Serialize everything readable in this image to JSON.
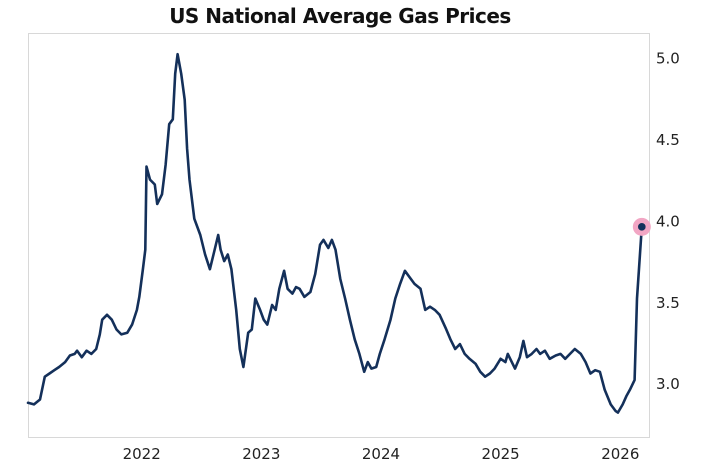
{
  "chart_data": {
    "type": "line",
    "title": "US National Average Gas Prices",
    "xlabel": "",
    "ylabel": "",
    "xlim": [
      2021.05,
      2026.24
    ],
    "ylim": [
      2.67,
      5.15
    ],
    "x_ticks": [
      2022,
      2023,
      2024,
      2025,
      2026
    ],
    "x_tick_labels": [
      "2022",
      "2023",
      "2024",
      "2025",
      "2026"
    ],
    "y_ticks": [
      3.0,
      3.5,
      4.0,
      4.5,
      5.0
    ],
    "y_tick_labels": [
      "3.0",
      "3.5",
      "4.0",
      "4.5",
      "5.0"
    ],
    "y_axis_side": "right",
    "grid": false,
    "line_color": "#14305a",
    "highlight_color": "#f2a6c4",
    "highlight": "last point",
    "series": [
      {
        "points": [
          [
            2021.05,
            2.88
          ],
          [
            2021.1,
            2.87
          ],
          [
            2021.15,
            2.9
          ],
          [
            2021.19,
            3.04
          ],
          [
            2021.23,
            3.06
          ],
          [
            2021.27,
            3.08
          ],
          [
            2021.31,
            3.1
          ],
          [
            2021.36,
            3.13
          ],
          [
            2021.4,
            3.17
          ],
          [
            2021.44,
            3.18
          ],
          [
            2021.46,
            3.2
          ],
          [
            2021.5,
            3.16
          ],
          [
            2021.54,
            3.2
          ],
          [
            2021.58,
            3.18
          ],
          [
            2021.62,
            3.21
          ],
          [
            2021.65,
            3.3
          ],
          [
            2021.67,
            3.39
          ],
          [
            2021.71,
            3.42
          ],
          [
            2021.75,
            3.39
          ],
          [
            2021.79,
            3.33
          ],
          [
            2021.83,
            3.3
          ],
          [
            2021.88,
            3.31
          ],
          [
            2021.92,
            3.36
          ],
          [
            2021.96,
            3.45
          ],
          [
            2021.98,
            3.53
          ],
          [
            2022.01,
            3.7
          ],
          [
            2022.03,
            3.82
          ],
          [
            2022.04,
            4.33
          ],
          [
            2022.07,
            4.25
          ],
          [
            2022.11,
            4.22
          ],
          [
            2022.13,
            4.1
          ],
          [
            2022.17,
            4.16
          ],
          [
            2022.2,
            4.34
          ],
          [
            2022.23,
            4.59
          ],
          [
            2022.26,
            4.62
          ],
          [
            2022.28,
            4.9
          ],
          [
            2022.3,
            5.02
          ],
          [
            2022.33,
            4.9
          ],
          [
            2022.36,
            4.74
          ],
          [
            2022.38,
            4.44
          ],
          [
            2022.4,
            4.25
          ],
          [
            2022.44,
            4.01
          ],
          [
            2022.49,
            3.91
          ],
          [
            2022.53,
            3.79
          ],
          [
            2022.57,
            3.7
          ],
          [
            2022.6,
            3.79
          ],
          [
            2022.64,
            3.91
          ],
          [
            2022.66,
            3.82
          ],
          [
            2022.69,
            3.75
          ],
          [
            2022.72,
            3.79
          ],
          [
            2022.75,
            3.7
          ],
          [
            2022.79,
            3.45
          ],
          [
            2022.82,
            3.21
          ],
          [
            2022.85,
            3.1
          ],
          [
            2022.89,
            3.31
          ],
          [
            2022.92,
            3.33
          ],
          [
            2022.95,
            3.52
          ],
          [
            2022.99,
            3.45
          ],
          [
            2023.02,
            3.39
          ],
          [
            2023.05,
            3.36
          ],
          [
            2023.09,
            3.48
          ],
          [
            2023.12,
            3.45
          ],
          [
            2023.15,
            3.58
          ],
          [
            2023.19,
            3.69
          ],
          [
            2023.22,
            3.58
          ],
          [
            2023.26,
            3.55
          ],
          [
            2023.29,
            3.59
          ],
          [
            2023.32,
            3.58
          ],
          [
            2023.36,
            3.53
          ],
          [
            2023.41,
            3.56
          ],
          [
            2023.45,
            3.67
          ],
          [
            2023.49,
            3.85
          ],
          [
            2023.52,
            3.88
          ],
          [
            2023.56,
            3.83
          ],
          [
            2023.59,
            3.88
          ],
          [
            2023.62,
            3.82
          ],
          [
            2023.66,
            3.64
          ],
          [
            2023.7,
            3.52
          ],
          [
            2023.74,
            3.39
          ],
          [
            2023.78,
            3.27
          ],
          [
            2023.82,
            3.18
          ],
          [
            2023.86,
            3.07
          ],
          [
            2023.89,
            3.13
          ],
          [
            2023.92,
            3.09
          ],
          [
            2023.96,
            3.1
          ],
          [
            2023.99,
            3.18
          ],
          [
            2024.03,
            3.27
          ],
          [
            2024.08,
            3.39
          ],
          [
            2024.12,
            3.52
          ],
          [
            2024.16,
            3.61
          ],
          [
            2024.2,
            3.69
          ],
          [
            2024.24,
            3.65
          ],
          [
            2024.28,
            3.61
          ],
          [
            2024.33,
            3.58
          ],
          [
            2024.37,
            3.45
          ],
          [
            2024.41,
            3.47
          ],
          [
            2024.45,
            3.45
          ],
          [
            2024.49,
            3.42
          ],
          [
            2024.54,
            3.34
          ],
          [
            2024.58,
            3.27
          ],
          [
            2024.62,
            3.21
          ],
          [
            2024.66,
            3.24
          ],
          [
            2024.7,
            3.18
          ],
          [
            2024.74,
            3.15
          ],
          [
            2024.79,
            3.12
          ],
          [
            2024.83,
            3.07
          ],
          [
            2024.87,
            3.04
          ],
          [
            2024.91,
            3.06
          ],
          [
            2024.95,
            3.09
          ],
          [
            2025.0,
            3.15
          ],
          [
            2025.04,
            3.13
          ],
          [
            2025.06,
            3.18
          ],
          [
            2025.1,
            3.12
          ],
          [
            2025.12,
            3.09
          ],
          [
            2025.16,
            3.16
          ],
          [
            2025.19,
            3.26
          ],
          [
            2025.22,
            3.16
          ],
          [
            2025.26,
            3.18
          ],
          [
            2025.3,
            3.21
          ],
          [
            2025.33,
            3.18
          ],
          [
            2025.37,
            3.2
          ],
          [
            2025.41,
            3.15
          ],
          [
            2025.46,
            3.17
          ],
          [
            2025.5,
            3.18
          ],
          [
            2025.54,
            3.15
          ],
          [
            2025.58,
            3.18
          ],
          [
            2025.62,
            3.21
          ],
          [
            2025.67,
            3.18
          ],
          [
            2025.71,
            3.13
          ],
          [
            2025.75,
            3.06
          ],
          [
            2025.79,
            3.08
          ],
          [
            2025.83,
            3.07
          ],
          [
            2025.87,
            2.96
          ],
          [
            2025.92,
            2.87
          ],
          [
            2025.96,
            2.83
          ],
          [
            2025.98,
            2.82
          ],
          [
            2026.02,
            2.87
          ],
          [
            2026.05,
            2.92
          ],
          [
            2026.08,
            2.96
          ],
          [
            2026.12,
            3.02
          ],
          [
            2026.14,
            3.52
          ],
          [
            2026.18,
            3.96
          ]
        ]
      }
    ]
  }
}
